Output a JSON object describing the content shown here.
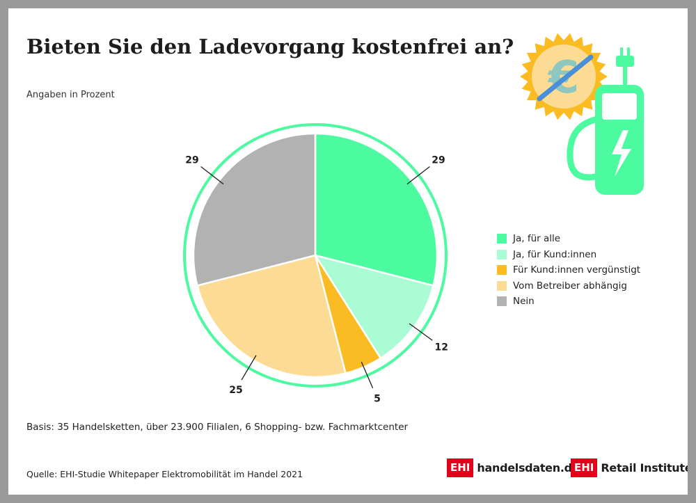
{
  "chart_data": {
    "type": "pie",
    "title": "Bieten Sie den Ladevorgang kostenfrei an?",
    "subtitle": "Angaben in Prozent",
    "unit": "%",
    "legend_position": "right",
    "slices": [
      {
        "label": "Ja, für alle",
        "value": 29,
        "color": "#4cfa9f"
      },
      {
        "label": "Ja, für Kund:innen",
        "value": 12,
        "color": "#a9fcd3"
      },
      {
        "label": "Für Kund:innen vergünstigt",
        "value": 5,
        "color": "#fbbb22"
      },
      {
        "label": "Vom Betreiber abhängig",
        "value": 25,
        "color": "#fcdc94"
      },
      {
        "label": "Nein",
        "value": 29,
        "color": "#b2b2b2"
      }
    ],
    "ring_color": "#4cfa9f"
  },
  "footer": {
    "basis": "Basis: 35 Handelsketten, über 23.900 Filialen, 6 Shopping- bzw. Fachmarktcenter",
    "source": "Quelle: EHI-Studie Whitepaper Elektromobilität im Handel 2021"
  },
  "logos": {
    "logo1_box": "EHI",
    "logo1_text": "handelsdaten.de",
    "logo2_box": "EHI",
    "logo2_text": "Retail Institute",
    "logo2_reg": "®"
  },
  "icon": {
    "name": "charging-station-no-euro-icon",
    "badge_symbol": "€"
  }
}
